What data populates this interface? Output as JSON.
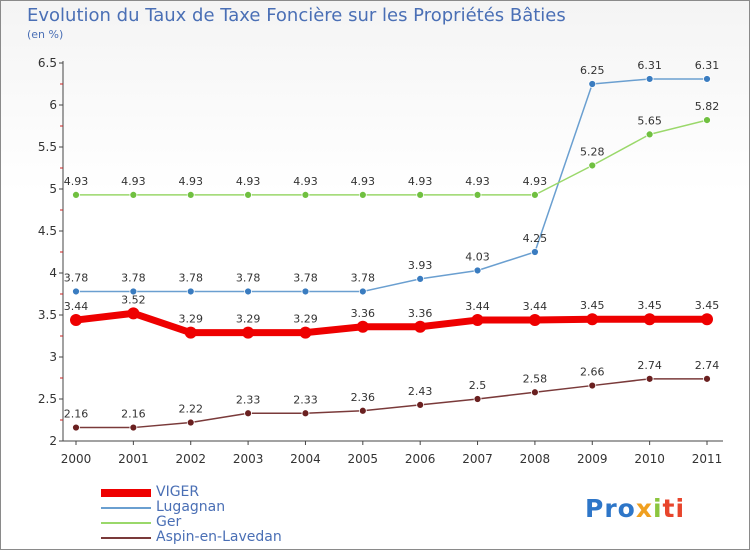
{
  "title": "Evolution du Taux de Taxe Foncière sur les Propriétés Bâties",
  "unit": "(en %)",
  "logo": {
    "p1": "Pro",
    "p2": "x",
    "p3": "i",
    "p4": "ti"
  },
  "chart_data": {
    "type": "line",
    "x": [
      "2000",
      "2001",
      "2002",
      "2003",
      "2004",
      "2005",
      "2006",
      "2007",
      "2008",
      "2009",
      "2010",
      "2011"
    ],
    "ylim": [
      2,
      6.5
    ],
    "yticks": [
      "2",
      "2.5",
      "3",
      "3.5",
      "4",
      "4.5",
      "5",
      "5.5",
      "6",
      "6.5"
    ],
    "grid": false,
    "legend_position": "bottom-left",
    "series": [
      {
        "name": "VIGER",
        "color": "#ee0000",
        "thick": true,
        "values": [
          3.44,
          3.52,
          3.29,
          3.29,
          3.29,
          3.36,
          3.36,
          3.44,
          3.44,
          3.45,
          3.45,
          3.45
        ],
        "labels": [
          "3.44",
          "3.52",
          "3.29",
          "3.29",
          "3.29",
          "3.36",
          "3.36",
          "3.44",
          "3.44",
          "3.45",
          "3.45",
          "3.45"
        ]
      },
      {
        "name": "Lugagnan",
        "color": "#6a9fd0",
        "marker": "#3a7cc0",
        "values": [
          3.78,
          3.78,
          3.78,
          3.78,
          3.78,
          3.78,
          3.93,
          4.03,
          4.25,
          6.25,
          6.31,
          6.31
        ],
        "labels": [
          "3.78",
          "3.78",
          "3.78",
          "3.78",
          "3.78",
          "3.78",
          "3.93",
          "4.03",
          "4.25",
          "6.25",
          "6.31",
          "6.31"
        ]
      },
      {
        "name": "Ger",
        "color": "#9ad86a",
        "marker": "#70c040",
        "values": [
          4.93,
          4.93,
          4.93,
          4.93,
          4.93,
          4.93,
          4.93,
          4.93,
          4.93,
          5.28,
          5.65,
          5.82
        ],
        "labels": [
          "4.93",
          "4.93",
          "4.93",
          "4.93",
          "4.93",
          "4.93",
          "4.93",
          "4.93",
          "4.93",
          "5.28",
          "5.65",
          "5.82"
        ]
      },
      {
        "name": "Aspin-en-Lavedan",
        "color": "#7a3a3a",
        "marker": "#6a2020",
        "values": [
          2.16,
          2.16,
          2.22,
          2.33,
          2.33,
          2.36,
          2.43,
          2.5,
          2.58,
          2.66,
          2.74,
          2.74
        ],
        "labels": [
          "2.16",
          "2.16",
          "2.22",
          "2.33",
          "2.33",
          "2.36",
          "2.43",
          "2.5",
          "2.58",
          "2.66",
          "2.74",
          "2.74"
        ]
      }
    ]
  }
}
